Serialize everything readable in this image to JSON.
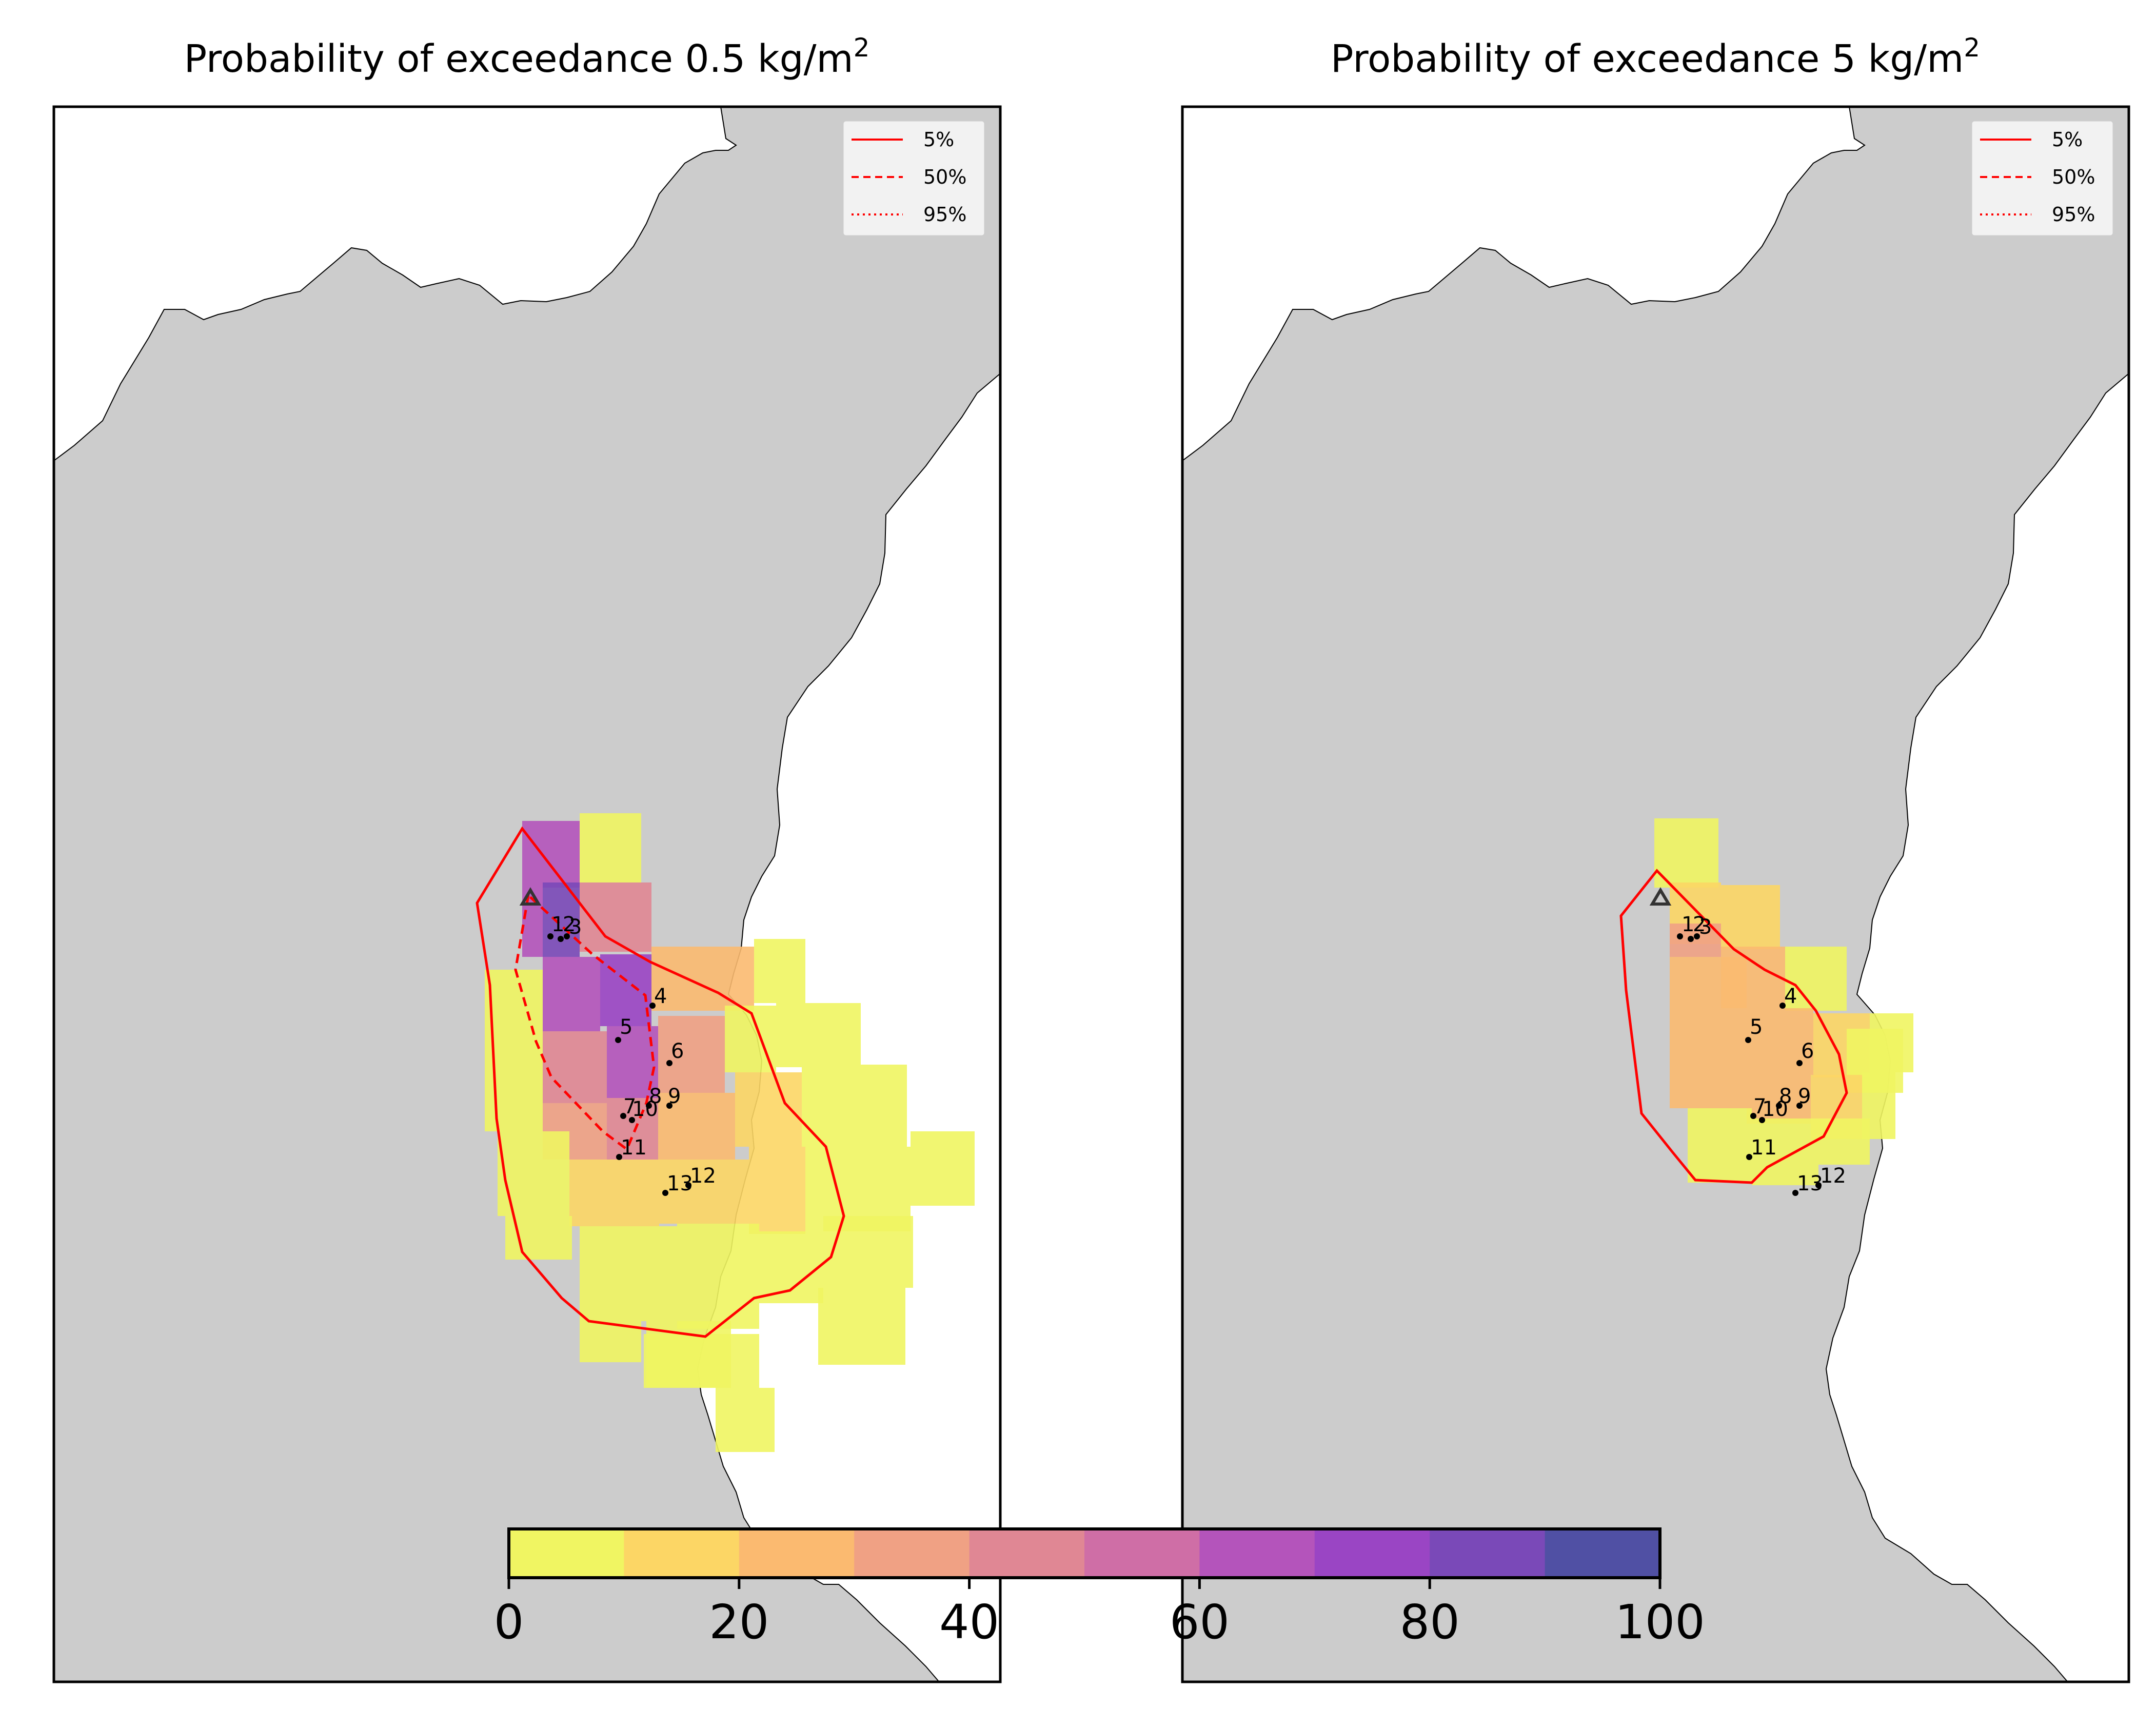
{
  "panels": [
    {
      "title_main": "Probability of exceedance 0.5 kg/m",
      "title_sup": "2",
      "legend": [
        "5%",
        "50%",
        "95%"
      ],
      "sites": [
        "1",
        "2",
        "3",
        "4",
        "5",
        "6",
        "7",
        "8",
        "9",
        "10",
        "11",
        "12",
        "13"
      ]
    },
    {
      "title_main": "Probability of exceedance 5 kg/m",
      "title_sup": "2",
      "legend": [
        "5%",
        "50%",
        "95%"
      ],
      "sites": [
        "1",
        "2",
        "3",
        "4",
        "5",
        "6",
        "7",
        "8",
        "9",
        "10",
        "11",
        "12",
        "13"
      ]
    }
  ],
  "colorbar": {
    "ticks": [
      "0",
      "20",
      "40",
      "60",
      "80",
      "100"
    ],
    "range": [
      0,
      100
    ],
    "step": 10,
    "colors": [
      "#f0f562",
      "#fcd665",
      "#fbba70",
      "#f0a184",
      "#e08794",
      "#cf6ea6",
      "#b454bb",
      "#9a45c4",
      "#7a49b8",
      "#5050a4"
    ]
  },
  "colors": {
    "land": "#cccccc",
    "sea": "#ffffff",
    "contour": "#ff0000",
    "vent": "#333333"
  },
  "icons": {
    "vent": "triangle-vent-icon",
    "site": "dot-marker-icon"
  }
}
